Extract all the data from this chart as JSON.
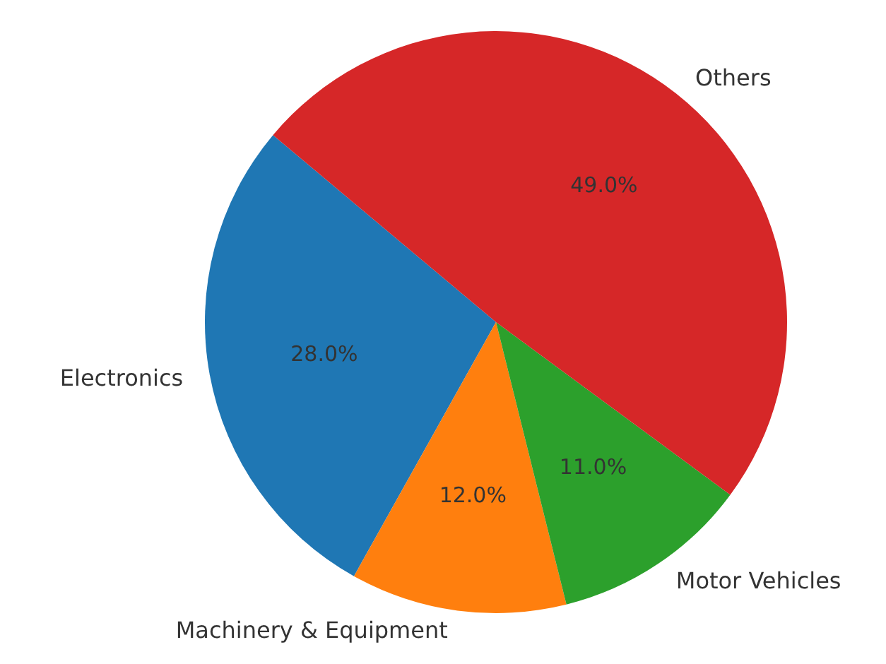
{
  "chart_data": {
    "type": "pie",
    "categories": [
      "Electronics",
      "Machinery & Equipment",
      "Motor Vehicles",
      "Others"
    ],
    "values": [
      28,
      12,
      11,
      49
    ],
    "colors": [
      "#1f77b4",
      "#ff7f0e",
      "#2ca02c",
      "#d62728"
    ],
    "value_labels": [
      "28.0%",
      "12.0%",
      "11.0%",
      "49.0%"
    ]
  }
}
